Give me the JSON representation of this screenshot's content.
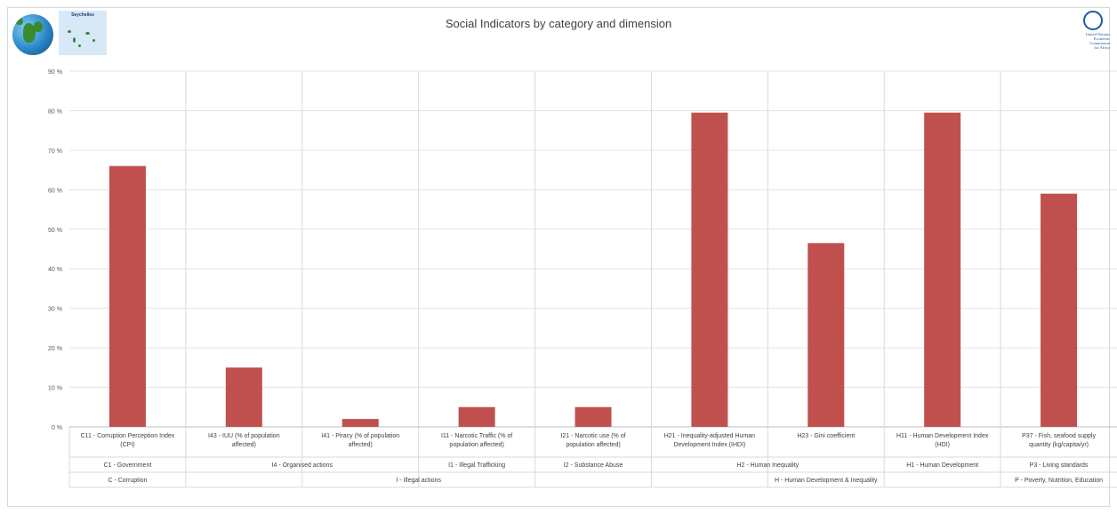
{
  "title": "Social Indicators by category and dimension",
  "header": {
    "country_map_label": "Seychelles",
    "org_logo_text": [
      "United Nations",
      "Economic Commission",
      "for Africa"
    ]
  },
  "chart_data": {
    "type": "bar",
    "title": "Social Indicators by category and dimension",
    "ylim": [
      0,
      90
    ],
    "yticks": [
      "0 %",
      "10 %",
      "20 %",
      "30 %",
      "40 %",
      "50 %",
      "60 %",
      "70 %",
      "80 %",
      "90 %"
    ],
    "grid": true,
    "bar_color": "#c0504d",
    "categories": [
      [
        "C11 - Corruption Perception Index",
        "(CPI)"
      ],
      [
        "I43 - IUU (% of population",
        "affected)"
      ],
      [
        "I41 - Piracy (% of population",
        "affected)"
      ],
      [
        "I11 - Narcotic Traffic (% of",
        "population affected)"
      ],
      [
        "I21 - Narcotic use (% of",
        "population affected)"
      ],
      [
        "H21 - Inequality-adjusted Human",
        "Development Index (IHDI)"
      ],
      [
        "H23 - Gini coefficient"
      ],
      [
        "H11 - Human Development Index",
        "(HDI)"
      ],
      [
        "P37 - Fish, seafood supply",
        "quantity (kg/capita/yr)"
      ]
    ],
    "values": [
      66,
      15,
      2,
      5,
      5,
      79.5,
      46.5,
      79.5,
      59
    ],
    "group_level1": [
      {
        "label": "C1 - Government",
        "span": 1
      },
      {
        "label": "I4 - Organised actions",
        "span": 2
      },
      {
        "label": "I1 - Illegal Trafficking",
        "span": 1
      },
      {
        "label": "I2 - Substance Abuse",
        "span": 1
      },
      {
        "label": "H2 - Human Inequality",
        "span": 2
      },
      {
        "label": "H1 - Human Development",
        "span": 1
      },
      {
        "label": "P3 - Living standards",
        "span": 1
      }
    ],
    "group_level2": [
      {
        "label": "C - Corruption",
        "span": 1
      },
      {
        "label": "I - Illegal actions",
        "span": 4
      },
      {
        "label": "H - Human Development & Inequality",
        "span": 3
      },
      {
        "label": "P - Poverty, Nutrition, Education",
        "span": 1
      }
    ]
  }
}
